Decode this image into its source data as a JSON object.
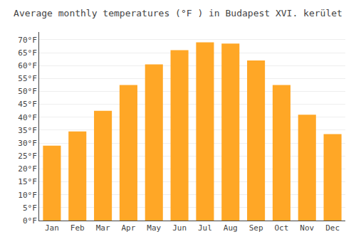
{
  "chart_data": {
    "type": "bar",
    "title": "Average monthly temperatures (°F ) in Budapest XVI. kerület",
    "categories": [
      "Jan",
      "Feb",
      "Mar",
      "Apr",
      "May",
      "Jun",
      "Jul",
      "Aug",
      "Sep",
      "Oct",
      "Nov",
      "Dec"
    ],
    "values": [
      29,
      34.5,
      42.5,
      52.5,
      60.5,
      66,
      69,
      68.5,
      62,
      52.5,
      41,
      33.5
    ],
    "color": "#FFA726",
    "ylim": [
      0,
      73
    ],
    "yticks": [
      {
        "value": 0,
        "label": "0°F"
      },
      {
        "value": 5,
        "label": "5°F"
      },
      {
        "value": 10,
        "label": "10°F"
      },
      {
        "value": 15,
        "label": "15°F"
      },
      {
        "value": 20,
        "label": "20°F"
      },
      {
        "value": 25,
        "label": "25°F"
      },
      {
        "value": 30,
        "label": "30°F"
      },
      {
        "value": 35,
        "label": "35°F"
      },
      {
        "value": 40,
        "label": "40°F"
      },
      {
        "value": 45,
        "label": "45°F"
      },
      {
        "value": 50,
        "label": "50°F"
      },
      {
        "value": 55,
        "label": "55°F"
      },
      {
        "value": 60,
        "label": "60°F"
      },
      {
        "value": 65,
        "label": "65°F"
      },
      {
        "value": 70,
        "label": "70°F"
      }
    ],
    "grid": true
  }
}
